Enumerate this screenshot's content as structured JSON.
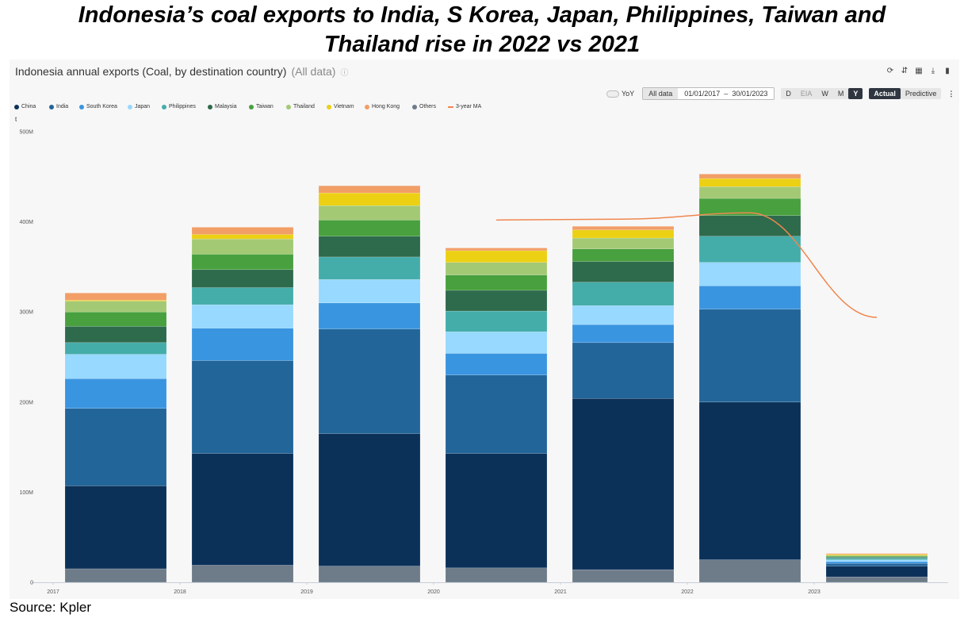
{
  "headline": {
    "line1": "Indonesia’s coal exports to India, S Korea, Japan, Philippines, Taiwan and",
    "line2": "Thailand rise in 2022 vs 2021"
  },
  "chart_header": {
    "title": "Indonesia annual exports (Coal, by destination country)",
    "subtitle": "(All data)",
    "info_icon": "ⓘ"
  },
  "header_icons": [
    "refresh-icon",
    "compare-icon",
    "grid-icon",
    "download-icon",
    "bookmark-icon"
  ],
  "toolbar": {
    "yoy_label": "YoY",
    "all_data_label": "All data",
    "date_from": "01/01/2017",
    "date_sep": "–",
    "date_to": "30/01/2023",
    "granularity": [
      "D",
      "EIA",
      "W",
      "M",
      "Y"
    ],
    "granularity_selected": "Y",
    "modes": [
      "Actual",
      "Predictive"
    ],
    "mode_selected": "Actual",
    "more_label": "⋮"
  },
  "source": "Source: Kpler",
  "chart_data": {
    "type": "bar",
    "stacked": true,
    "unit_label": "t",
    "categories": [
      "2017",
      "2018",
      "2019",
      "2020",
      "2021",
      "2022",
      "2023"
    ],
    "x_tick_labels": [
      "2017",
      "2018",
      "2019",
      "2020",
      "2021",
      "2022",
      "2023"
    ],
    "ylim": [
      0,
      500
    ],
    "y_unit": "M",
    "y_ticks": [
      "0",
      "100M",
      "200M",
      "300M",
      "400M",
      "500M"
    ],
    "grid": false,
    "legend_position": "top-left",
    "series": [
      {
        "name": "Others",
        "color": "#6e7b89",
        "values": [
          15,
          19,
          18,
          16,
          14,
          25,
          6
        ]
      },
      {
        "name": "China",
        "color": "#0b3159",
        "values": [
          92,
          124,
          147,
          127,
          190,
          175,
          12
        ]
      },
      {
        "name": "India",
        "color": "#226599",
        "values": [
          86,
          103,
          116,
          87,
          62,
          103,
          3
        ]
      },
      {
        "name": "South Korea",
        "color": "#3a95e0",
        "values": [
          33,
          36,
          29,
          24,
          20,
          26,
          2
        ]
      },
      {
        "name": "Japan",
        "color": "#97d9ff",
        "values": [
          27,
          26,
          26,
          24,
          21,
          26,
          2
        ]
      },
      {
        "name": "Philippines",
        "color": "#44adaa",
        "values": [
          13,
          19,
          25,
          23,
          26,
          29,
          2
        ]
      },
      {
        "name": "Malaysia",
        "color": "#2e6a4c",
        "values": [
          18,
          20,
          23,
          23,
          23,
          23,
          1
        ]
      },
      {
        "name": "Taiwan",
        "color": "#48a03e",
        "values": [
          16,
          17,
          18,
          17,
          14,
          19,
          1
        ]
      },
      {
        "name": "Thailand",
        "color": "#a4c975",
        "values": [
          12,
          17,
          16,
          14,
          12,
          13,
          1
        ]
      },
      {
        "name": "Vietnam",
        "color": "#ecd014",
        "values": [
          1,
          5,
          14,
          13,
          9,
          9,
          1
        ]
      },
      {
        "name": "Hong Kong",
        "color": "#f29e67",
        "values": [
          8,
          8,
          8,
          3,
          4,
          5,
          1
        ]
      }
    ],
    "legend_order": [
      "China",
      "India",
      "South Korea",
      "Japan",
      "Philippines",
      "Malaysia",
      "Taiwan",
      "Thailand",
      "Vietnam",
      "Hong Kong",
      "Others",
      "3-year MA"
    ],
    "line_series": {
      "name": "3-year MA",
      "color": "#f0874f",
      "x": [
        "2020",
        "2021",
        "2022",
        "2023"
      ],
      "values": [
        402,
        403,
        410,
        294
      ]
    }
  }
}
